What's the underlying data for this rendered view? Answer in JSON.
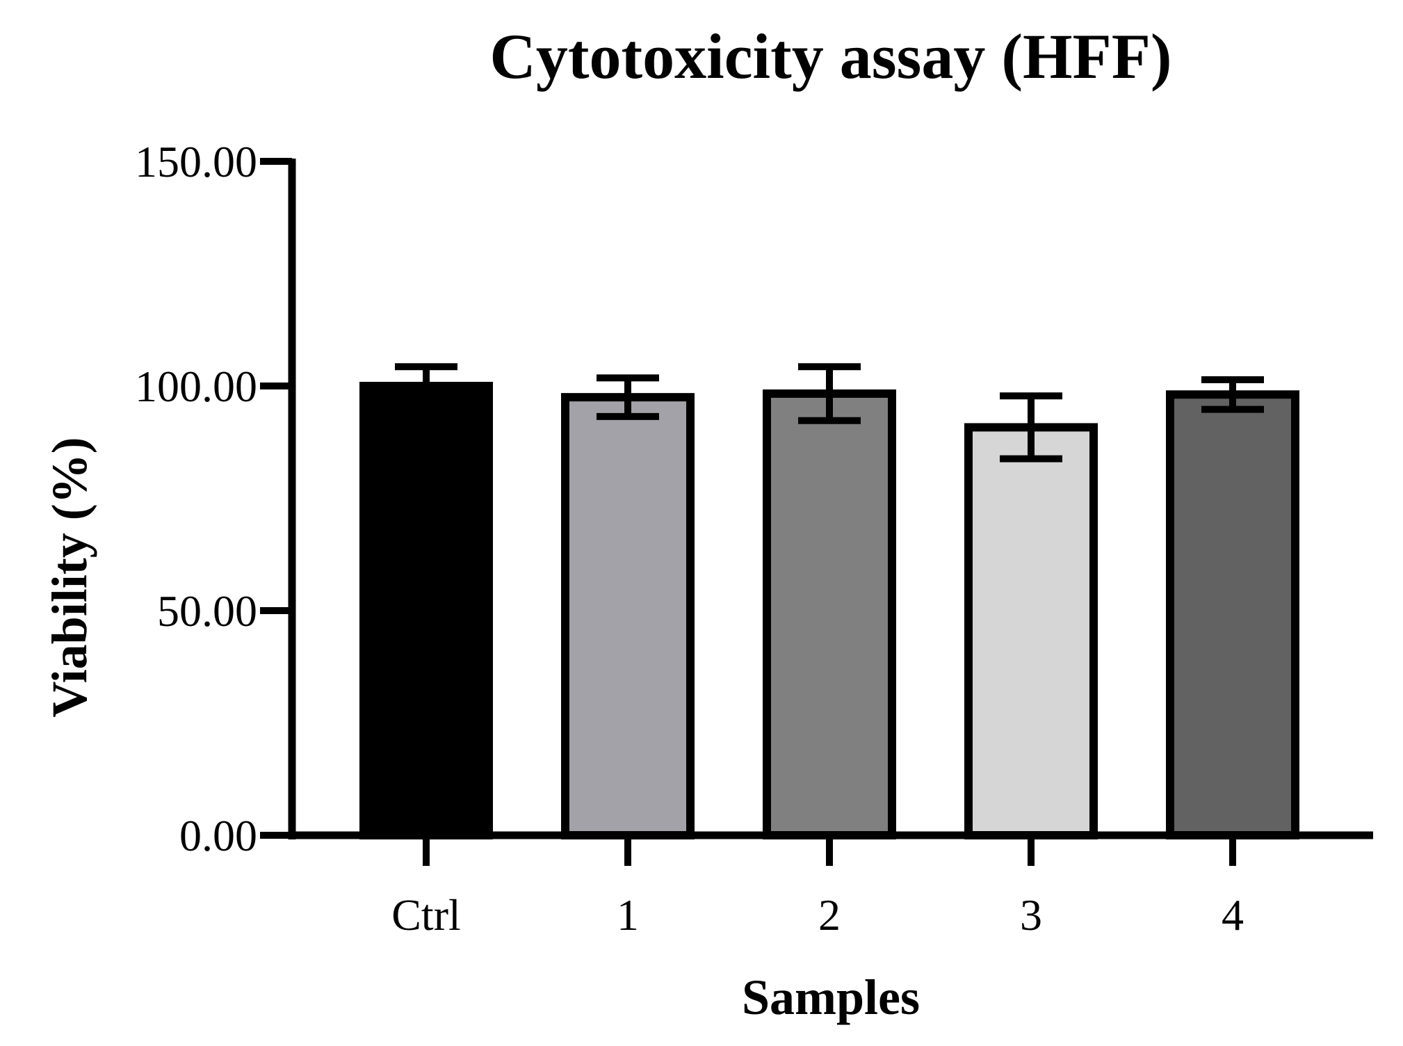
{
  "chart_data": {
    "type": "bar",
    "title": "Cytotoxicity assay (HFF)",
    "xlabel": "Samples",
    "ylabel": "Viability (%)",
    "ylim": [
      0,
      150
    ],
    "yticks": [
      0,
      50,
      100,
      150
    ],
    "ytick_labels": [
      "0.00",
      "50.00",
      "100.00",
      "150.00"
    ],
    "categories": [
      "Ctrl",
      "1",
      "2",
      "3",
      "4"
    ],
    "values": [
      100.0,
      97.5,
      98.3,
      90.8,
      98.1
    ],
    "errors": [
      4.3,
      4.3,
      6.0,
      7.0,
      3.3
    ],
    "colors": [
      "#000000",
      "#a3a2a8",
      "#808080",
      "#d6d6d6",
      "#626262"
    ],
    "edge_color": "#000000",
    "grid": false,
    "legend": false
  }
}
